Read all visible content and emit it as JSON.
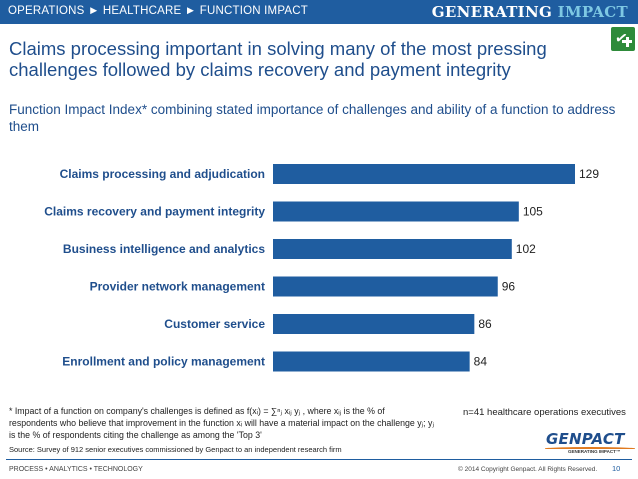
{
  "header": {
    "breadcrumb": "OPERATIONS ► HEALTHCARE ► FUNCTION IMPACT",
    "brand_main": "GENERATING",
    "brand_accent": " IMPACT"
  },
  "headline": "Claims processing important in solving many of the most pressing challenges followed by claims recovery and payment integrity",
  "subtitle": "Function Impact Index* combining stated importance of challenges and ability of a function to address them",
  "chart_data": {
    "type": "bar",
    "orientation": "horizontal",
    "categories": [
      "Claims processing and adjudication",
      "Claims recovery and payment integrity",
      "Business intelligence and analytics",
      "Provider network management",
      "Customer service",
      "Enrollment and policy management"
    ],
    "values": [
      129,
      105,
      102,
      96,
      86,
      84
    ],
    "xlim": [
      0,
      129
    ],
    "bar_color": "#1f5da0",
    "grid": false,
    "data_labels": true
  },
  "footnote": "* Impact of a function on company's challenges is defined as f(xᵢ) = ∑ⁿⱼ xᵢⱼ yⱼ , where xᵢⱼ is the % of respondents who believe that improvement in the function xᵢ will have a material impact on the challenge yⱼ; yⱼ is the % of respondents citing the challenge as among the 'Top 3'",
  "source": "Source: Survey of 912 senior executives commissioned by Genpact to an independent research firm",
  "sample_note": "n=41 healthcare operations executives",
  "logo": {
    "name": "GENPACT",
    "tagline": "GENERATING IMPACT™"
  },
  "footer": {
    "left": "PROCESS • ANALYTICS • TECHNOLOGY",
    "right": "© 2014 Copyright Genpact. All Rights Reserved.",
    "page_number": "10"
  }
}
